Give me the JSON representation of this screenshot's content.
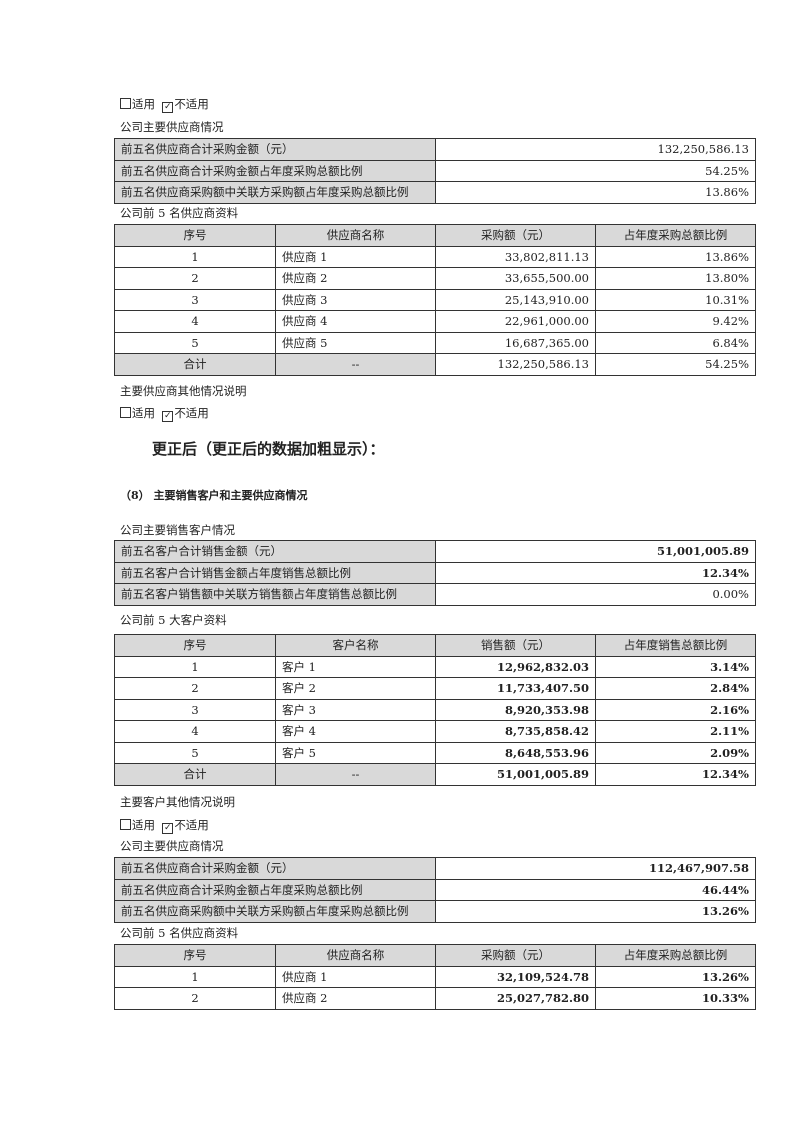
{
  "checkbox_applicable": "适用",
  "checkbox_not_applicable": "不适用",
  "before": {
    "supplier_summary_title": "公司主要供应商情况",
    "supplier_summary": [
      {
        "label": "前五名供应商合计采购金额（元）",
        "value": "132,250,586.13"
      },
      {
        "label": "前五名供应商合计采购金额占年度采购总额比例",
        "value": "54.25%"
      },
      {
        "label": "前五名供应商采购额中关联方采购额占年度采购总额比例",
        "value": "13.86%"
      }
    ],
    "supplier_detail_title": "公司前 5 名供应商资料",
    "supplier_headers": [
      "序号",
      "供应商名称",
      "采购额（元）",
      "占年度采购总额比例"
    ],
    "supplier_rows": [
      [
        "1",
        "供应商 1",
        "33,802,811.13",
        "13.86%"
      ],
      [
        "2",
        "供应商 2",
        "33,655,500.00",
        "13.80%"
      ],
      [
        "3",
        "供应商 3",
        "25,143,910.00",
        "10.31%"
      ],
      [
        "4",
        "供应商 4",
        "22,961,000.00",
        "9.42%"
      ],
      [
        "5",
        "供应商 5",
        "16,687,365.00",
        "6.84%"
      ],
      [
        "合计",
        "--",
        "132,250,586.13",
        "54.25%"
      ]
    ],
    "supplier_other_note": "主要供应商其他情况说明"
  },
  "corrected_heading": "更正后（更正后的数据加粗显示）：",
  "section_heading": "（8）  主要销售客户和主要供应商情况",
  "after": {
    "customer_summary_title": "公司主要销售客户情况",
    "customer_summary": [
      {
        "label": "前五名客户合计销售金额（元）",
        "value": "51,001,005.89",
        "bold": true
      },
      {
        "label": "前五名客户合计销售金额占年度销售总额比例",
        "value": "12.34%",
        "bold": true
      },
      {
        "label": "前五名客户销售额中关联方销售额占年度销售总额比例",
        "value": "0.00%",
        "bold": false
      }
    ],
    "customer_detail_title": "公司前 5 大客户资料",
    "customer_headers": [
      "序号",
      "客户名称",
      "销售额（元）",
      "占年度销售总额比例"
    ],
    "customer_rows": [
      [
        "1",
        "客户 1",
        "12,962,832.03",
        "3.14%"
      ],
      [
        "2",
        "客户 2",
        "11,733,407.50",
        "2.84%"
      ],
      [
        "3",
        "客户 3",
        "8,920,353.98",
        "2.16%"
      ],
      [
        "4",
        "客户 4",
        "8,735,858.42",
        "2.11%"
      ],
      [
        "5",
        "客户 5",
        "8,648,553.96",
        "2.09%"
      ],
      [
        "合计",
        "--",
        "51,001,005.89",
        "12.34%"
      ]
    ],
    "customer_other_note": "主要客户其他情况说明",
    "supplier_summary_title": "公司主要供应商情况",
    "supplier_summary": [
      {
        "label": "前五名供应商合计采购金额（元）",
        "value": "112,467,907.58",
        "bold": true
      },
      {
        "label": "前五名供应商合计采购金额占年度采购总额比例",
        "value": "46.44%",
        "bold": true
      },
      {
        "label": "前五名供应商采购额中关联方采购额占年度采购总额比例",
        "value": "13.26%",
        "bold": true
      }
    ],
    "supplier_detail_title": "公司前 5 名供应商资料",
    "supplier_headers": [
      "序号",
      "供应商名称",
      "采购额（元）",
      "占年度采购总额比例"
    ],
    "supplier_rows": [
      [
        "1",
        "供应商 1",
        "32,109,524.78",
        "13.26%"
      ],
      [
        "2",
        "供应商 2",
        "25,027,782.80",
        "10.33%"
      ]
    ]
  }
}
